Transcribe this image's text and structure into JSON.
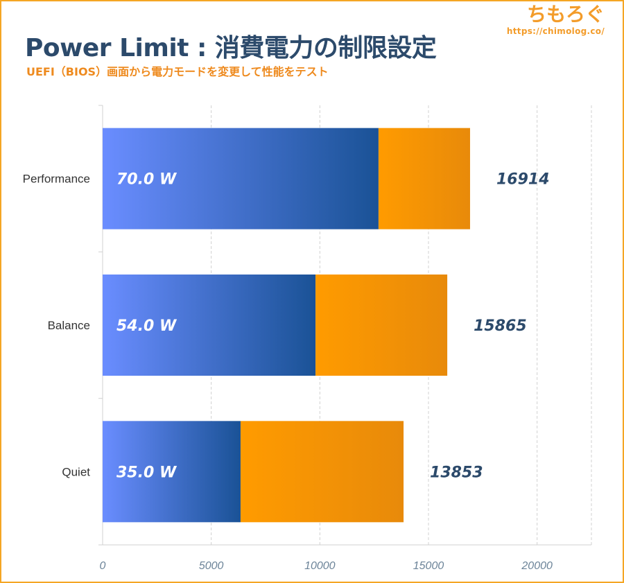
{
  "header": {
    "title": "Power Limit : 消費電力の制限設定",
    "subtitle": "UEFI（BIOS）画面から電力モードを変更して性能をテスト"
  },
  "brand": {
    "name": "ちもろぐ",
    "url": "https://chimolog.co/"
  },
  "colors": {
    "frame": "#f5a623",
    "title": "#2c4a6b",
    "subtitle": "#ee8a1e",
    "blue_light": "#6a8dff",
    "blue_dark": "#1a5296",
    "orange_light": "#ff9b00",
    "orange_dark": "#e88a0a",
    "grid": "#d0d0d0",
    "score_text": "#2c4a6b"
  },
  "chart_data": {
    "type": "bar",
    "orientation": "horizontal",
    "stacked": true,
    "categories": [
      "Performance",
      "Balance",
      "Quiet"
    ],
    "power_labels": [
      "70.0 W",
      "54.0 W",
      "35.0 W"
    ],
    "series": [
      {
        "values": [
          12700,
          9800,
          6350
        ]
      },
      {
        "values": [
          4214,
          6065,
          7503
        ]
      }
    ],
    "totals": [
      16914,
      15865,
      13853
    ],
    "xlim": [
      0,
      22500
    ],
    "xticks": [
      0,
      5000,
      10000,
      15000,
      20000
    ],
    "grid": true,
    "legend": "none"
  }
}
